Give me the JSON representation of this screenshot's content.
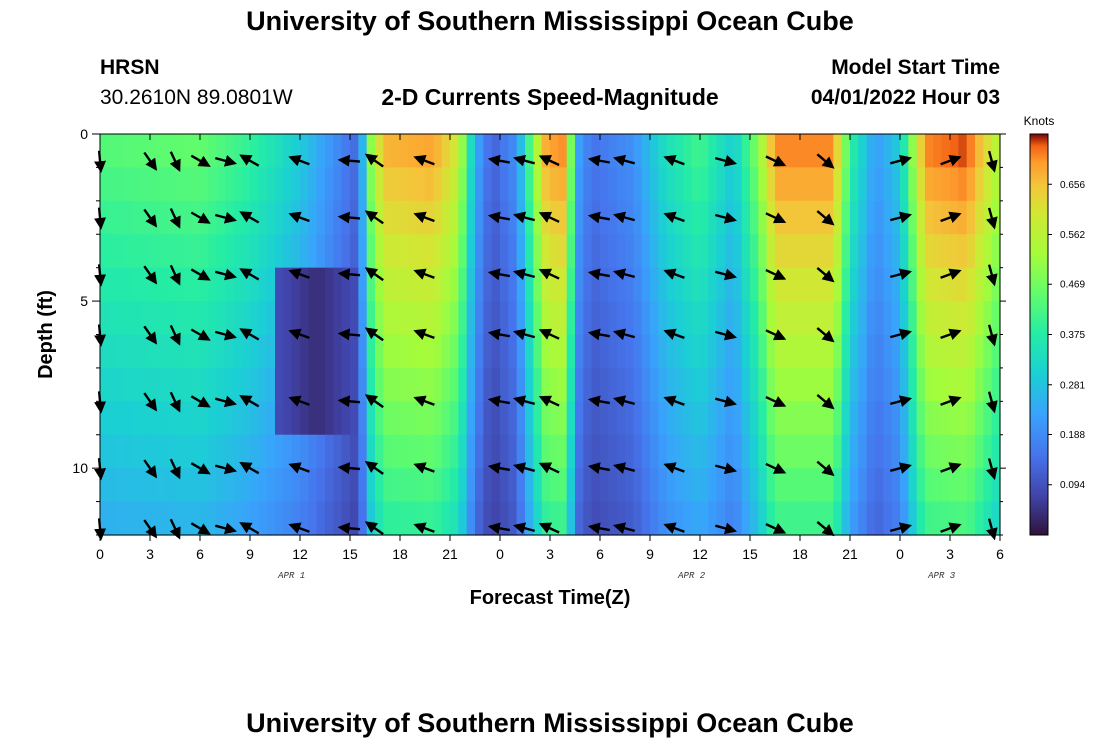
{
  "header": {
    "title": "University of Southern Mississippi Ocean Cube",
    "station": "HRSN",
    "coordinates": "30.2610N  89.0801W",
    "subtitle": "2-D Currents Speed-Magnitude",
    "model_start_label": "Model Start Time",
    "model_start_value": "04/01/2022 Hour 03"
  },
  "footer": {
    "title": "University of Southern Mississippi Ocean Cube"
  },
  "chart_data": {
    "type": "heatmap",
    "title": "2-D Currents Speed-Magnitude",
    "xlabel": "Forecast Time(Z)",
    "ylabel": "Depth (ft)",
    "x_start_hour": 0,
    "x_end_hour": 54,
    "x_tick_labels": [
      "0",
      "3",
      "6",
      "9",
      "12",
      "15",
      "18",
      "21",
      "0",
      "3",
      "6",
      "9",
      "12",
      "15",
      "18",
      "21",
      "0",
      "3",
      "6"
    ],
    "date_labels": [
      {
        "text": "APR 1",
        "hour": 11.5
      },
      {
        "text": "APR 2",
        "hour": 35.5
      },
      {
        "text": "APR 3",
        "hour": 50.5
      }
    ],
    "ylim": [
      0,
      12
    ],
    "y_ticks": [
      0,
      5,
      10
    ],
    "depth_levels": [
      0.5,
      1.5,
      2.5,
      3.5,
      4.5,
      5.5,
      6.5,
      7.5,
      8.5,
      9.5,
      10.5,
      11.5
    ],
    "colorbar": {
      "title": "Knots",
      "min": 0.0,
      "max": 0.75,
      "tick_values": [
        0.094,
        0.188,
        0.281,
        0.375,
        0.469,
        0.562,
        0.656
      ]
    },
    "speed_profile_surface": [
      [
        0,
        0.44
      ],
      [
        6,
        0.46
      ],
      [
        9,
        0.4
      ],
      [
        12,
        0.3
      ],
      [
        14,
        0.2
      ],
      [
        15.5,
        0.13
      ],
      [
        16.2,
        0.5
      ],
      [
        17,
        0.68
      ],
      [
        20,
        0.7
      ],
      [
        21.5,
        0.6
      ],
      [
        22.5,
        0.25
      ],
      [
        23.5,
        0.12
      ],
      [
        25,
        0.2
      ],
      [
        26,
        0.5
      ],
      [
        26.8,
        0.7
      ],
      [
        28,
        0.72
      ],
      [
        28.5,
        0.25
      ],
      [
        29.5,
        0.15
      ],
      [
        32,
        0.2
      ],
      [
        34,
        0.35
      ],
      [
        36,
        0.42
      ],
      [
        38,
        0.3
      ],
      [
        39.5,
        0.5
      ],
      [
        40.5,
        0.72
      ],
      [
        44,
        0.72
      ],
      [
        45,
        0.4
      ],
      [
        46.5,
        0.22
      ],
      [
        48,
        0.3
      ],
      [
        49.5,
        0.72
      ],
      [
        52,
        0.75
      ],
      [
        54,
        0.55
      ]
    ],
    "vector_times": [
      0,
      3,
      4.5,
      6,
      7.5,
      9,
      12,
      15,
      16.5,
      19.5,
      24,
      25.5,
      27,
      30,
      31.5,
      34.5,
      37.5,
      40.5,
      43.5,
      48,
      51,
      53.5
    ],
    "vector_depths": [
      0.8,
      2.5,
      4.2,
      6.0,
      8.0,
      10.0,
      11.8
    ],
    "vector_angles_deg": [
      85,
      55,
      65,
      30,
      15,
      210,
      200,
      185,
      215,
      200,
      190,
      195,
      205,
      190,
      195,
      200,
      15,
      25,
      40,
      345,
      340,
      75
    ]
  }
}
